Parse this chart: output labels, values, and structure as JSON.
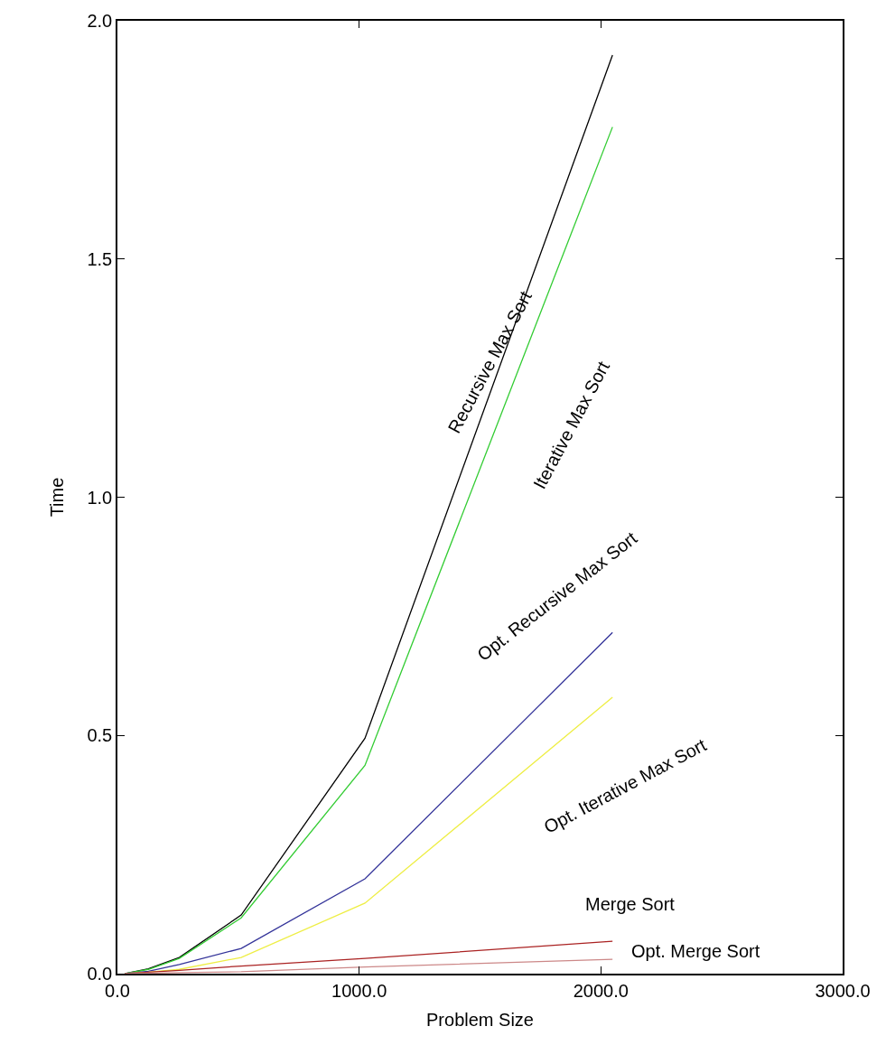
{
  "chart_data": {
    "type": "line",
    "xlabel": "Problem Size",
    "ylabel": "Time",
    "x": [
      32,
      128,
      256,
      512,
      1024,
      2048
    ],
    "series": [
      {
        "name": "Recursive Max Sort",
        "color": "#000000",
        "values": [
          0.0,
          0.01,
          0.034,
          0.123,
          0.494,
          1.928
        ]
      },
      {
        "name": "Iterative Max Sort",
        "color": "#33cc33",
        "values": [
          0.0,
          0.009,
          0.032,
          0.117,
          0.437,
          1.777
        ]
      },
      {
        "name": "Opt. Recursive Max Sort",
        "color": "#333399",
        "values": [
          0.0,
          0.005,
          0.019,
          0.053,
          0.199,
          0.716
        ]
      },
      {
        "name": "Opt. Iterative Max Sort",
        "color": "#eeee44",
        "values": [
          0.0,
          0.003,
          0.009,
          0.034,
          0.148,
          0.58
        ]
      },
      {
        "name": "Merge Sort",
        "color": "#aa2222",
        "values": [
          0.0,
          0.003,
          0.007,
          0.016,
          0.032,
          0.068
        ]
      },
      {
        "name": "Opt. Merge Sort",
        "color": "#cc8888",
        "values": [
          0.0,
          0.001,
          0.002,
          0.004,
          0.014,
          0.03
        ]
      }
    ],
    "xlim": [
      0,
      3000
    ],
    "xticks": [
      {
        "value": 0,
        "label": "0.0"
      },
      {
        "value": 1000,
        "label": "1000.0"
      },
      {
        "value": 2000,
        "label": "2000.0"
      },
      {
        "value": 3000,
        "label": "3000.0"
      }
    ],
    "ylim": [
      0,
      2
    ],
    "yticks": [
      {
        "value": 0,
        "label": "0.0"
      },
      {
        "value": 0.5,
        "label": "0.5"
      },
      {
        "value": 1,
        "label": "1.0"
      },
      {
        "value": 1.5,
        "label": "1.5"
      },
      {
        "value": 2,
        "label": "2.0"
      }
    ],
    "grid": false,
    "legend": false,
    "marker": "none",
    "line_style": "solid"
  }
}
